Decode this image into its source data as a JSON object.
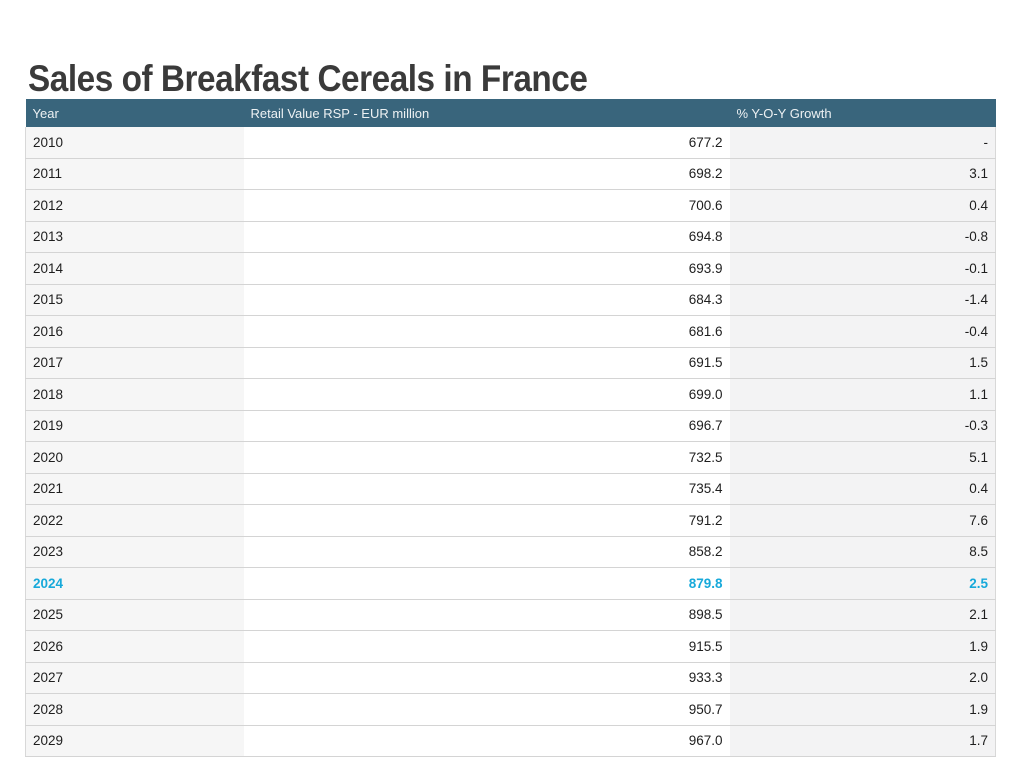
{
  "page": {
    "title": "Sales of Breakfast Cereals in France"
  },
  "colors": {
    "header_bg": "#39657c",
    "header_text": "#edf1f3",
    "highlight_text": "#17a9da",
    "title_text": "#3a3a3a",
    "alt_column_bg": "#f5f5f6",
    "row_border": "#d4d4d4"
  },
  "table": {
    "columns": [
      {
        "label": "Year"
      },
      {
        "label": "Retail Value RSP - EUR million"
      },
      {
        "label": "% Y-O-Y Growth"
      }
    ],
    "highlight_year": "2024",
    "rows": [
      {
        "year": "2010",
        "value": "677.2",
        "growth": "-"
      },
      {
        "year": "2011",
        "value": "698.2",
        "growth": "3.1"
      },
      {
        "year": "2012",
        "value": "700.6",
        "growth": "0.4"
      },
      {
        "year": "2013",
        "value": "694.8",
        "growth": "-0.8"
      },
      {
        "year": "2014",
        "value": "693.9",
        "growth": "-0.1"
      },
      {
        "year": "2015",
        "value": "684.3",
        "growth": "-1.4"
      },
      {
        "year": "2016",
        "value": "681.6",
        "growth": "-0.4"
      },
      {
        "year": "2017",
        "value": "691.5",
        "growth": "1.5"
      },
      {
        "year": "2018",
        "value": "699.0",
        "growth": "1.1"
      },
      {
        "year": "2019",
        "value": "696.7",
        "growth": "-0.3"
      },
      {
        "year": "2020",
        "value": "732.5",
        "growth": "5.1"
      },
      {
        "year": "2021",
        "value": "735.4",
        "growth": "0.4"
      },
      {
        "year": "2022",
        "value": "791.2",
        "growth": "7.6"
      },
      {
        "year": "2023",
        "value": "858.2",
        "growth": "8.5"
      },
      {
        "year": "2024",
        "value": "879.8",
        "growth": "2.5"
      },
      {
        "year": "2025",
        "value": "898.5",
        "growth": "2.1"
      },
      {
        "year": "2026",
        "value": "915.5",
        "growth": "1.9"
      },
      {
        "year": "2027",
        "value": "933.3",
        "growth": "2.0"
      },
      {
        "year": "2028",
        "value": "950.7",
        "growth": "1.9"
      },
      {
        "year": "2029",
        "value": "967.0",
        "growth": "1.7"
      }
    ]
  },
  "chart_data": {
    "type": "table",
    "title": "Sales of Breakfast Cereals in France",
    "columns": [
      "Year",
      "Retail Value RSP - EUR million",
      "% Y-O-Y Growth"
    ],
    "x": [
      2010,
      2011,
      2012,
      2013,
      2014,
      2015,
      2016,
      2017,
      2018,
      2019,
      2020,
      2021,
      2022,
      2023,
      2024,
      2025,
      2026,
      2027,
      2028,
      2029
    ],
    "series": [
      {
        "name": "Retail Value RSP - EUR million",
        "values": [
          677.2,
          698.2,
          700.6,
          694.8,
          693.9,
          684.3,
          681.6,
          691.5,
          699.0,
          696.7,
          732.5,
          735.4,
          791.2,
          858.2,
          879.8,
          898.5,
          915.5,
          933.3,
          950.7,
          967.0
        ]
      },
      {
        "name": "% Y-O-Y Growth",
        "values": [
          null,
          3.1,
          0.4,
          -0.8,
          -0.1,
          -1.4,
          -0.4,
          1.5,
          1.1,
          -0.3,
          5.1,
          0.4,
          7.6,
          8.5,
          2.5,
          2.1,
          1.9,
          2.0,
          1.9,
          1.7
        ]
      }
    ],
    "highlighted_row": 2024,
    "legend_position": "none",
    "grid": false
  }
}
